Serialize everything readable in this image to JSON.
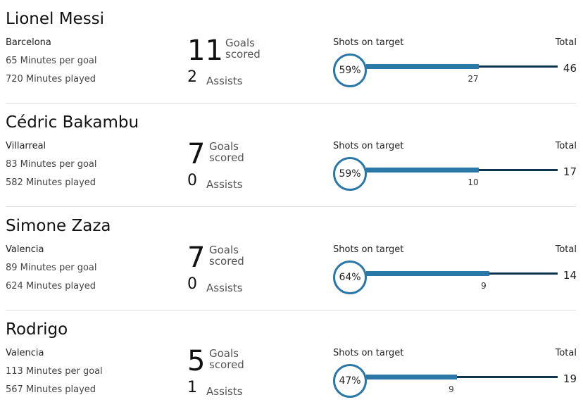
{
  "labels": {
    "goals_line1": "Goals",
    "goals_line2": "scored",
    "assists": "Assists",
    "shots_on_target": "Shots on target",
    "total": "Total"
  },
  "colors": {
    "accent": "#2a78a8",
    "dark": "#0f3550"
  },
  "players": [
    {
      "name": "Lionel Messi",
      "club": "Barcelona",
      "minutes_per_goal": "65 Minutes per goal",
      "minutes_played": "720 Minutes played",
      "goals": "11",
      "assists": "2",
      "shots_on_target_pct": "59%",
      "shots_on_target": "27",
      "shots_total": "46"
    },
    {
      "name": "Cédric Bakambu",
      "club": "Villarreal",
      "minutes_per_goal": "83 Minutes per goal",
      "minutes_played": "582 Minutes played",
      "goals": "7",
      "assists": "0",
      "shots_on_target_pct": "59%",
      "shots_on_target": "10",
      "shots_total": "17"
    },
    {
      "name": "Simone Zaza",
      "club": "Valencia",
      "minutes_per_goal": "89 Minutes per goal",
      "minutes_played": "624 Minutes played",
      "goals": "7",
      "assists": "0",
      "shots_on_target_pct": "64%",
      "shots_on_target": "9",
      "shots_total": "14"
    },
    {
      "name": "Rodrigo",
      "club": "Valencia",
      "minutes_per_goal": "113 Minutes per goal",
      "minutes_played": "567 Minutes played",
      "goals": "5",
      "assists": "1",
      "shots_on_target_pct": "47%",
      "shots_on_target": "9",
      "shots_total": "19"
    }
  ]
}
